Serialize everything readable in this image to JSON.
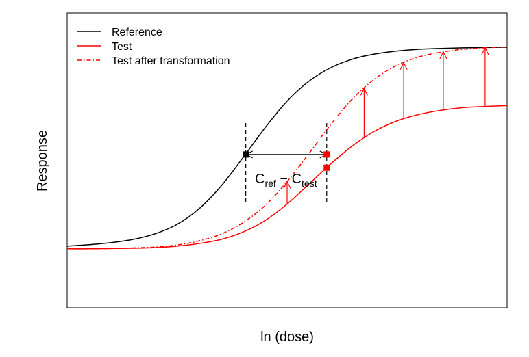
{
  "chart_data": {
    "type": "line",
    "title": "",
    "xlabel": "ln (dose)",
    "ylabel": "Response",
    "grid": false,
    "axis_ticks": false,
    "legend_position": "top-left",
    "x": [
      0,
      0.5,
      1,
      1.5,
      2,
      2.5,
      3,
      3.5,
      4,
      4.5,
      5,
      5.5,
      6,
      6.5,
      7,
      7.5,
      8,
      8.5,
      9,
      9.5,
      10
    ],
    "xlim": [
      0,
      10
    ],
    "ylim": [
      0,
      1
    ],
    "series": [
      {
        "name": "Reference",
        "color": "#000000",
        "line_style": "solid",
        "values": [
          0.209,
          0.214,
          0.221,
          0.232,
          0.251,
          0.283,
          0.336,
          0.413,
          0.51,
          0.611,
          0.701,
          0.769,
          0.815,
          0.844,
          0.861,
          0.871,
          0.877,
          0.88,
          0.882,
          0.883,
          0.884
        ]
      },
      {
        "name": "Test",
        "color": "#ff0000",
        "line_style": "solid",
        "values": [
          0.2,
          0.2,
          0.201,
          0.202,
          0.204,
          0.209,
          0.218,
          0.232,
          0.257,
          0.296,
          0.352,
          0.42,
          0.489,
          0.551,
          0.6,
          0.634,
          0.656,
          0.67,
          0.679,
          0.683,
          0.686
        ]
      },
      {
        "name": "Test after transformation",
        "color": "#ff0000",
        "line_style": "dot-dash",
        "values": [
          0.2,
          0.2,
          0.201,
          0.203,
          0.206,
          0.213,
          0.227,
          0.25,
          0.289,
          0.347,
          0.428,
          0.524,
          0.623,
          0.711,
          0.777,
          0.823,
          0.851,
          0.867,
          0.877,
          0.882,
          0.885
        ]
      }
    ],
    "annotations": {
      "reference_point": {
        "x": 4.06,
        "y": 0.52,
        "color": "#000000"
      },
      "test_point": {
        "x": 5.9,
        "y": 0.475,
        "color": "#ff0000"
      },
      "transformed_point": {
        "x": 5.9,
        "y": 0.52,
        "color": "#ff0000"
      },
      "shift_label": {
        "main": "C",
        "sub1": "ref",
        "op": " − C",
        "sub2": "test"
      },
      "transformation_arrows_x": [
        5,
        6.75,
        7.65,
        8.55,
        9.5
      ]
    }
  }
}
